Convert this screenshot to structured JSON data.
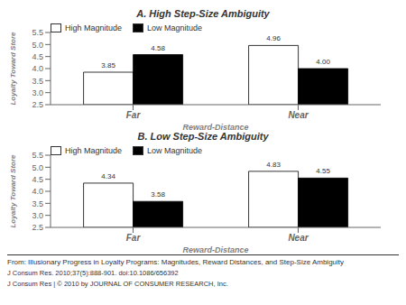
{
  "chart_data": [
    {
      "type": "bar",
      "title": "A. High Step-Size Ambiguity",
      "categories": [
        "Far",
        "Near"
      ],
      "series": [
        {
          "name": "High Magnitude",
          "color": "white",
          "values": [
            3.85,
            4.96
          ],
          "value_labels": [
            "3.85",
            "4.96"
          ]
        },
        {
          "name": "Low Magnitude",
          "color": "black",
          "values": [
            4.58,
            4.0
          ],
          "value_labels": [
            "4.58",
            "4.00"
          ]
        }
      ],
      "xlabel": "Reward-Distance",
      "ylabel": "Loyalty Toward Store",
      "ylim": [
        2.5,
        5.5
      ],
      "yticks": [
        2.5,
        {
          "value": 3,
          "label": "3.0"
        },
        3.5,
        {
          "value": 4,
          "label": "4.0"
        },
        4.5,
        {
          "value": 5,
          "label": "5.0"
        },
        5.5
      ],
      "data_labels": true,
      "legend": "upper left"
    },
    {
      "type": "bar",
      "title": "B. Low Step-Size Ambiguity",
      "categories": [
        "Far",
        "Near"
      ],
      "series": [
        {
          "name": "High Magnitude",
          "color": "white",
          "values": [
            4.34,
            4.83
          ],
          "value_labels": [
            "4.34",
            "4.83"
          ]
        },
        {
          "name": "Low Magnitude",
          "color": "black",
          "values": [
            3.58,
            4.55
          ],
          "value_labels": [
            "3.58",
            "4.55"
          ]
        }
      ],
      "xlabel": "Reward-Distance",
      "ylabel": "Loyalty Toward Store",
      "ylim": [
        2.5,
        5.5
      ],
      "yticks": [
        2.5,
        {
          "value": 3,
          "label": "3.0"
        },
        3.5,
        {
          "value": 4,
          "label": "4.0"
        },
        4.5,
        {
          "value": 5,
          "label": "5.0"
        },
        5.5
      ],
      "data_labels": true,
      "legend": "upper left",
      "annotations": [
        "From: Illusionary Progress in Loyalty Programs: Magnitudes, Reward Distances, and Step-Size Ambiguity",
        "J Consum Res. 2010;37(5):888-901. doi:10.1086/656392",
        "J Consum Res | © 2010 by JOURNAL OF CONSUMER RESEARCH, Inc."
      ]
    }
  ]
}
